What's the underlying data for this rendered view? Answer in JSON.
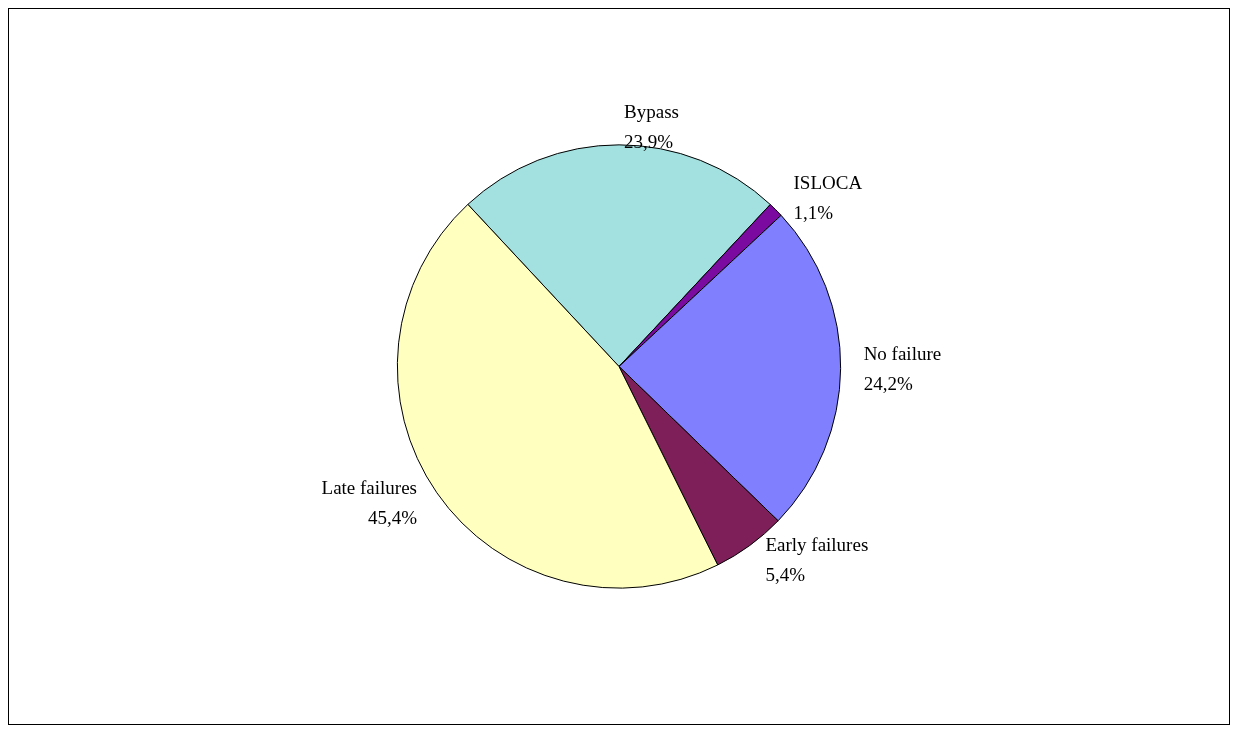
{
  "chart_data": {
    "type": "pie",
    "categories": [
      "Bypass",
      "ISLOCA",
      "No failure",
      "Early failures",
      "Late failures"
    ],
    "values": [
      23.9,
      1.1,
      24.2,
      5.4,
      45.4
    ],
    "value_labels": [
      "23,9%",
      "1,1%",
      "24,2%",
      "5,4%",
      "45,4%"
    ],
    "colors": [
      "#a3e0e0",
      "#7a0aa0",
      "#8080ff",
      "#7f1f5a",
      "#ffffc0"
    ],
    "legend": false
  }
}
